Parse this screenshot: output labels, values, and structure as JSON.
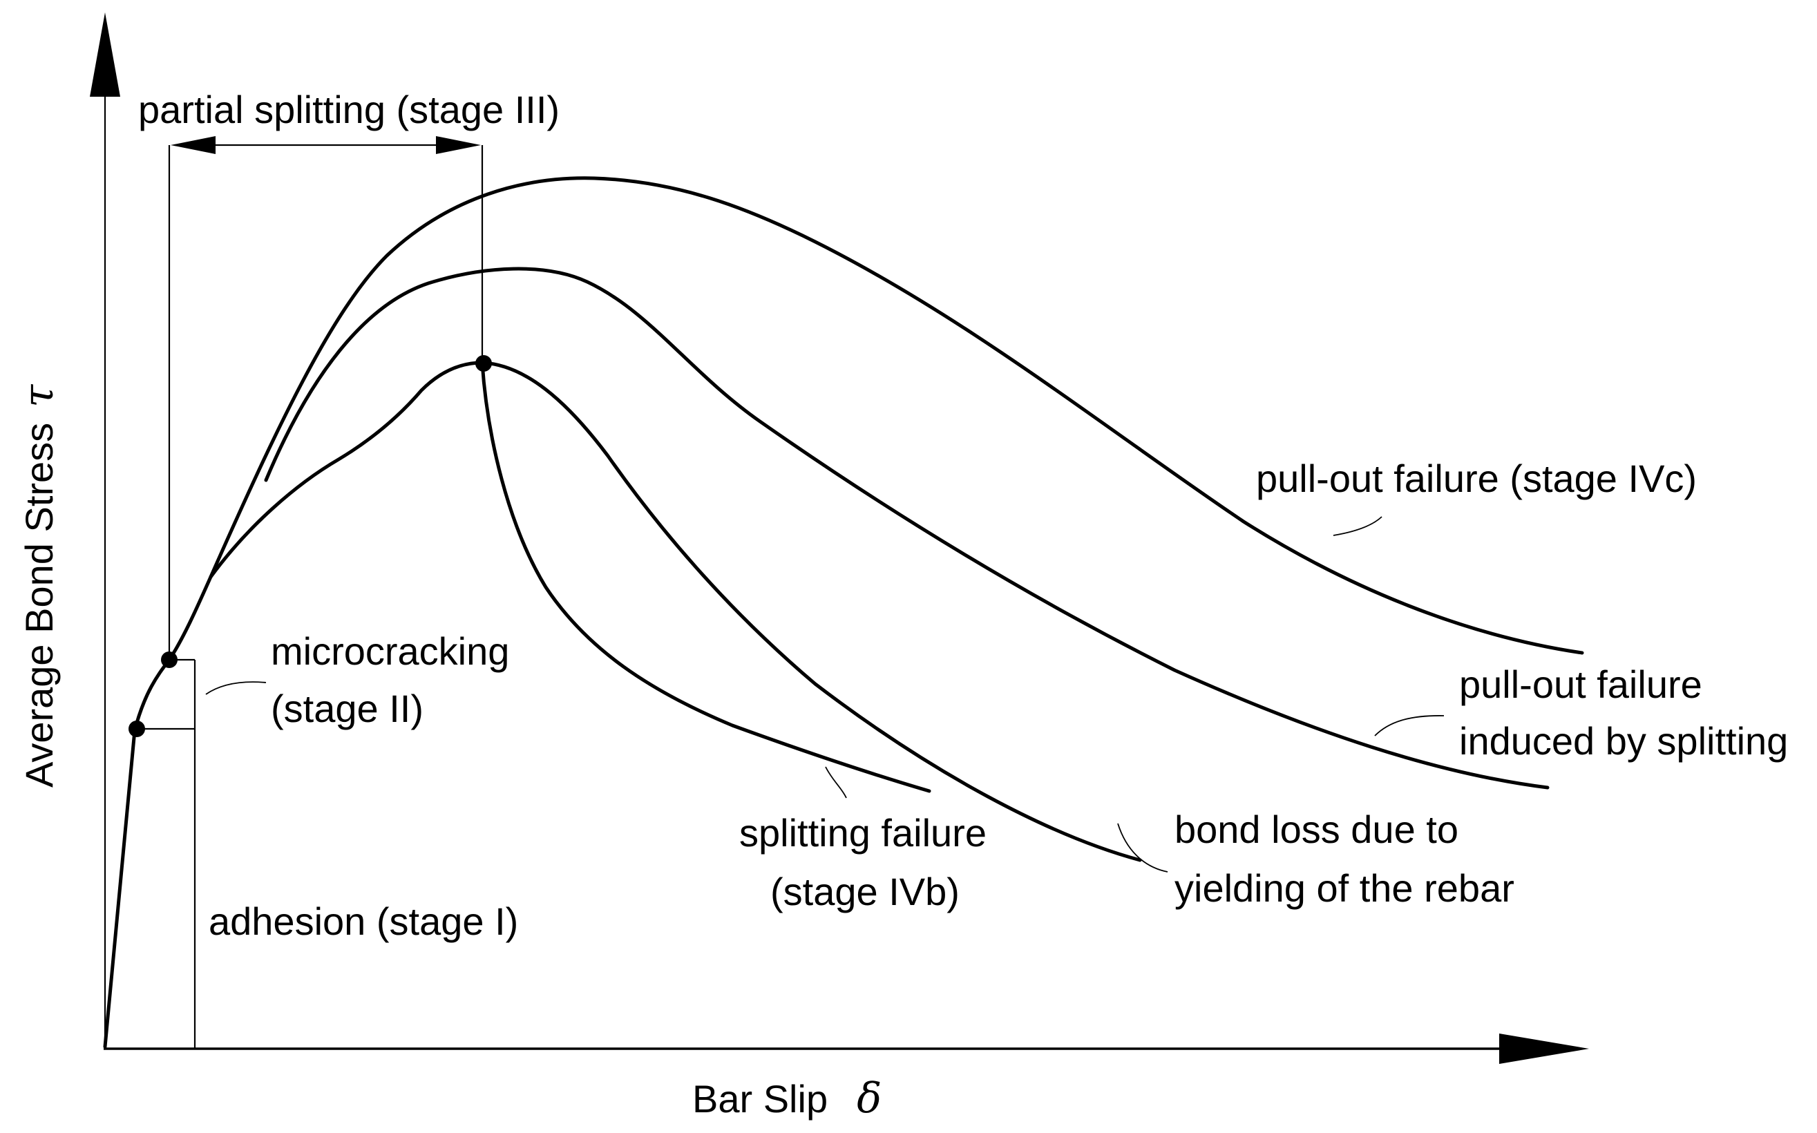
{
  "axes": {
    "y_label": "Average Bond Stress",
    "y_symbol": "τ",
    "x_label": "Bar Slip",
    "x_symbol": "δ"
  },
  "labels": {
    "partial_splitting": "partial splitting (stage III)",
    "microcracking_line1": "microcracking",
    "microcracking_line2": "(stage II)",
    "adhesion": "adhesion (stage I)",
    "pullout_iv_c": "pull-out failure (stage IVc)",
    "pullout_split_line1": "pull-out failure",
    "pullout_split_line2": "induced by splitting",
    "splitting_line1": "splitting failure",
    "splitting_line2": "(stage IVb)",
    "bond_loss_line1": "bond loss due to",
    "bond_loss_line2": "yielding of the rebar"
  },
  "curves": [
    {
      "name": "pull-out failure (stage IVc)"
    },
    {
      "name": "pull-out failure induced by splitting"
    },
    {
      "name": "splitting failure (stage IVb)"
    },
    {
      "name": "bond loss due to yielding of the rebar"
    }
  ]
}
